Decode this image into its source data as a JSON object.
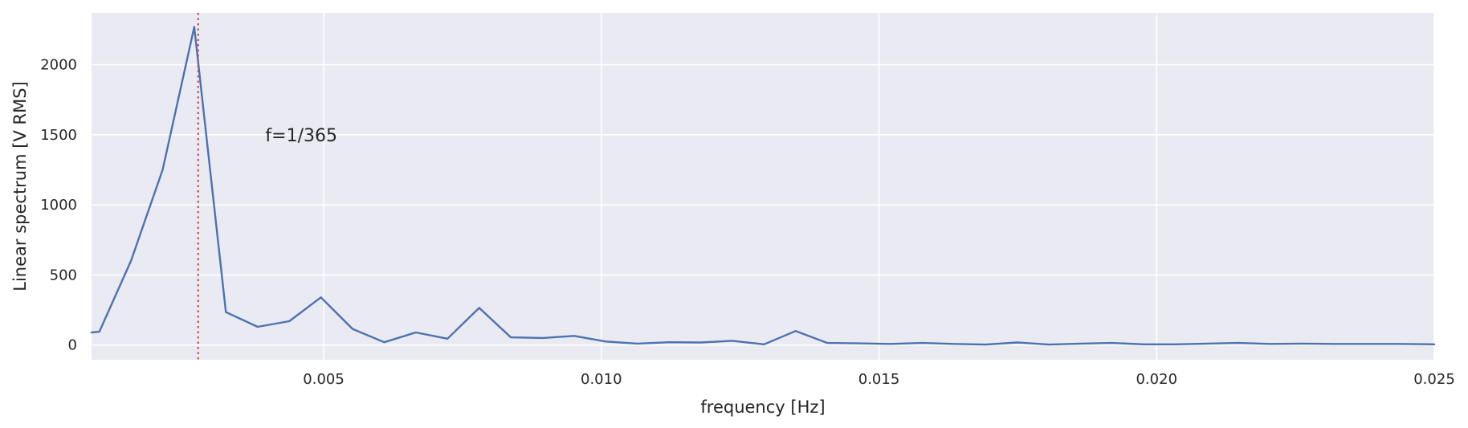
{
  "chart_data": {
    "type": "line",
    "xlabel": "frequency [Hz]",
    "ylabel": "Linear spectrum [V RMS]",
    "xlim": [
      0.00082,
      0.025
    ],
    "ylim": [
      -105,
      2370
    ],
    "grid": true,
    "x_ticks": [
      {
        "value": 0.005,
        "label": "0.005"
      },
      {
        "value": 0.01,
        "label": "0.010"
      },
      {
        "value": 0.015,
        "label": "0.015"
      },
      {
        "value": 0.02,
        "label": "0.020"
      },
      {
        "value": 0.025,
        "label": "0.025"
      }
    ],
    "y_ticks": [
      {
        "value": 0,
        "label": "0"
      },
      {
        "value": 500,
        "label": "500"
      },
      {
        "value": 1000,
        "label": "1000"
      },
      {
        "value": 1500,
        "label": "1500"
      },
      {
        "value": 2000,
        "label": "2000"
      }
    ],
    "series": [
      {
        "color": "#4c72b0",
        "x": [
          0.00082,
          0.00096,
          0.00153,
          0.0021,
          0.00267,
          0.00324,
          0.00381,
          0.00438,
          0.00495,
          0.00552,
          0.00609,
          0.00666,
          0.00723,
          0.0078,
          0.00837,
          0.00894,
          0.00951,
          0.01008,
          0.01065,
          0.01122,
          0.01179,
          0.01236,
          0.01293,
          0.0135,
          0.01407,
          0.01464,
          0.01521,
          0.01578,
          0.01635,
          0.01692,
          0.01749,
          0.01806,
          0.01863,
          0.0192,
          0.01977,
          0.02034,
          0.02091,
          0.02148,
          0.02205,
          0.02262,
          0.02319,
          0.02376,
          0.02433,
          0.025
        ],
        "y": [
          90,
          95,
          600,
          1250,
          2270,
          235,
          130,
          170,
          340,
          115,
          20,
          90,
          45,
          265,
          55,
          50,
          65,
          25,
          10,
          20,
          18,
          30,
          5,
          100,
          15,
          12,
          8,
          15,
          8,
          3,
          18,
          3,
          10,
          15,
          5,
          5,
          10,
          15,
          8,
          10,
          8,
          8,
          8,
          5
        ]
      }
    ],
    "reference_line": {
      "x": 0.00274,
      "color": "#c44e52",
      "style": "dotted"
    },
    "annotation": {
      "text": "f=1/365",
      "x": 0.00395,
      "y": 1500
    }
  }
}
